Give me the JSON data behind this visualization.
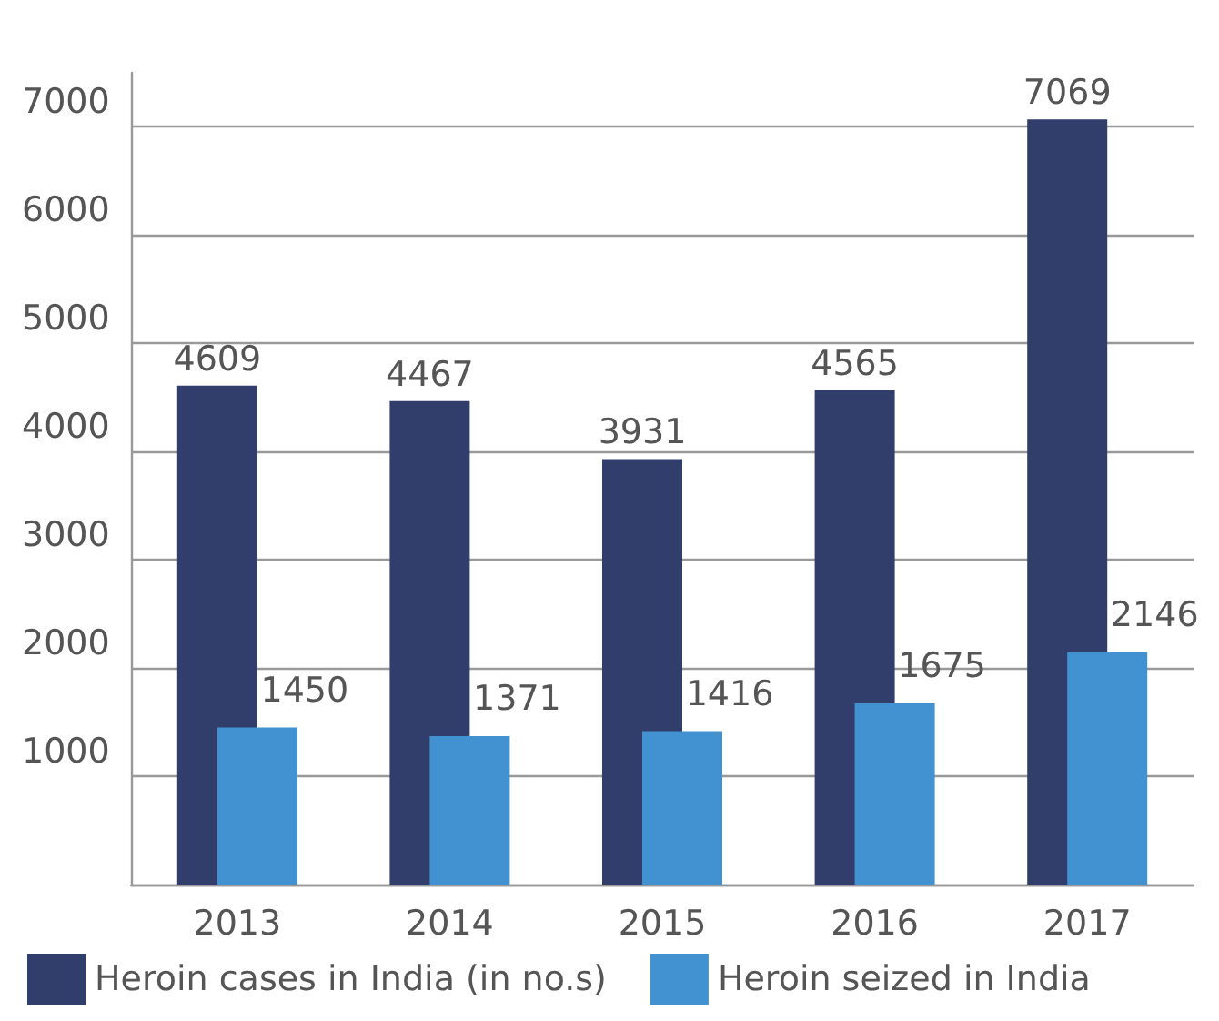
{
  "chart_data": {
    "type": "bar",
    "categories": [
      "2013",
      "2014",
      "2015",
      "2016",
      "2017"
    ],
    "series": [
      {
        "name": "Heroin cases in India (in no.s)",
        "color": "#313e6b",
        "values": [
          4609,
          4467,
          3931,
          4565,
          7069
        ]
      },
      {
        "name": "Heroin seized in India",
        "color": "#4292d2",
        "values": [
          1450,
          1371,
          1416,
          1675,
          2146
        ]
      }
    ],
    "ylim": [
      0,
      7500
    ],
    "yticks": [
      {
        "value": 0,
        "label": null
      },
      1000,
      2000,
      3000,
      4000,
      5000,
      6000,
      7000
    ],
    "grid": "y",
    "legend": "bottom left",
    "data_labels": true
  }
}
